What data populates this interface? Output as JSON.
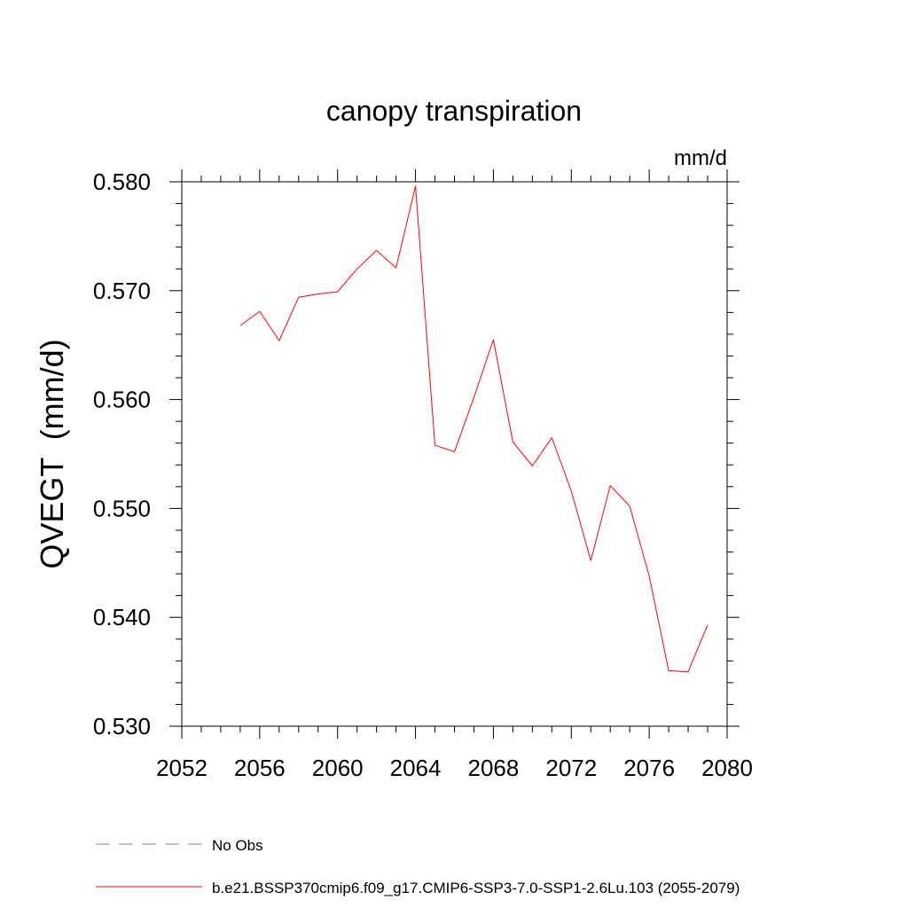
{
  "chart_data": {
    "type": "line",
    "title": "canopy transpiration",
    "units": "mm/d",
    "ylabel": "QVEGT  (mm/d)",
    "xlabel": "",
    "xlim": [
      2052,
      2080
    ],
    "ylim": [
      0.53,
      0.58
    ],
    "x_ticks": [
      2052,
      2056,
      2060,
      2064,
      2068,
      2072,
      2076,
      2080
    ],
    "x_tick_labels": [
      "2052",
      "2056",
      "2060",
      "2064",
      "2068",
      "2072",
      "2076",
      "2080"
    ],
    "y_ticks": [
      0.53,
      0.54,
      0.55,
      0.56,
      0.57,
      0.58
    ],
    "y_tick_labels": [
      "0.530",
      "0.540",
      "0.550",
      "0.560",
      "0.570",
      "0.580"
    ],
    "grid": false,
    "legend_placement": "bottom",
    "series": [
      {
        "name": "b.e21.BSSP370cmip6.f09_g17.CMIP6-SSP3-7.0-SSP1-2.6Lu.103 (2055-2079)",
        "color": "#ff0000",
        "style": "solid",
        "x": [
          2055,
          2056,
          2057,
          2058,
          2059,
          2060,
          2061,
          2062,
          2063,
          2064,
          2065,
          2066,
          2067,
          2068,
          2069,
          2070,
          2071,
          2072,
          2073,
          2074,
          2075,
          2076,
          2077,
          2078,
          2079
        ],
        "y": [
          0.5668,
          0.5681,
          0.5654,
          0.5694,
          0.5697,
          0.5699,
          0.572,
          0.5737,
          0.5721,
          0.5796,
          0.5558,
          0.5552,
          0.5602,
          0.5655,
          0.5561,
          0.5539,
          0.5565,
          0.5516,
          0.5452,
          0.5521,
          0.5502,
          0.5438,
          0.5351,
          0.535,
          0.5393
        ]
      }
    ],
    "legend": [
      {
        "label": "No Obs",
        "color": "#8080c0",
        "style": "dashed"
      },
      {
        "label": "b.e21.BSSP370cmip6.f09_g17.CMIP6-SSP3-7.0-SSP1-2.6Lu.103 (2055-2079)",
        "color": "#ff0000",
        "style": "solid"
      }
    ]
  }
}
